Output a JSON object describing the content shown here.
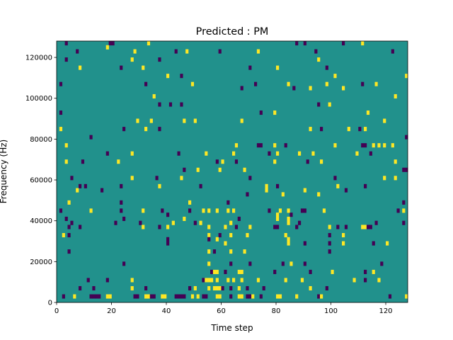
{
  "chart_data": {
    "type": "heatmap",
    "title": "Predicted : PM",
    "xlabel": "Time step",
    "ylabel": "Frequency (Hz)",
    "xlim": [
      0,
      128
    ],
    "ylim": [
      0,
      128000
    ],
    "x_ticks": [
      0,
      20,
      40,
      60,
      80,
      100,
      120
    ],
    "x_tick_labels": [
      "0",
      "20",
      "40",
      "60",
      "80",
      "100",
      "120"
    ],
    "y_ticks": [
      0,
      20000,
      40000,
      60000,
      80000,
      100000,
      120000
    ],
    "y_tick_labels": [
      "0",
      "20000",
      "40000",
      "60000",
      "80000",
      "100000",
      "120000"
    ],
    "grid": false,
    "colormap": "viridis",
    "value_levels": [
      -1,
      0,
      1
    ],
    "colors": {
      "background_level": "#21918c",
      "low_level": "#440154",
      "high_level": "#fde725"
    },
    "background_value": 0,
    "cell_size_x": 1,
    "cell_size_y": 2000,
    "cells": [
      [
        3,
        126000,
        -1
      ],
      [
        19,
        126000,
        -1
      ],
      [
        20,
        126000,
        -1
      ],
      [
        33,
        126000,
        1
      ],
      [
        87,
        126000,
        -1
      ],
      [
        90,
        126000,
        -1
      ],
      [
        104,
        126000,
        -1
      ],
      [
        111,
        126000,
        1
      ],
      [
        18,
        124000,
        1
      ],
      [
        7,
        122000,
        -1
      ],
      [
        28,
        122000,
        1
      ],
      [
        43,
        122000,
        -1
      ],
      [
        47,
        122000,
        1
      ],
      [
        59,
        122000,
        -1
      ],
      [
        73,
        122000,
        1
      ],
      [
        94,
        122000,
        -1
      ],
      [
        122,
        122000,
        -1
      ],
      [
        3,
        118000,
        -1
      ],
      [
        27,
        118000,
        1
      ],
      [
        37,
        118000,
        -1
      ],
      [
        95,
        118000,
        1
      ],
      [
        8,
        114000,
        1
      ],
      [
        23,
        114000,
        -1
      ],
      [
        31,
        114000,
        1
      ],
      [
        70,
        114000,
        -1
      ],
      [
        80,
        114000,
        1
      ],
      [
        98,
        114000,
        -1
      ],
      [
        40,
        110000,
        1
      ],
      [
        45,
        110000,
        -1
      ],
      [
        101,
        110000,
        1
      ],
      [
        127,
        110000,
        1
      ],
      [
        1,
        106000,
        -1
      ],
      [
        32,
        106000,
        -1
      ],
      [
        49,
        106000,
        1
      ],
      [
        72,
        106000,
        -1
      ],
      [
        84,
        106000,
        1
      ],
      [
        98,
        106000,
        1
      ],
      [
        111,
        106000,
        -1
      ],
      [
        116,
        106000,
        1
      ],
      [
        67,
        104000,
        -1
      ],
      [
        86,
        104000,
        -1
      ],
      [
        92,
        104000,
        1
      ],
      [
        104,
        104000,
        1
      ],
      [
        35,
        100000,
        1
      ],
      [
        123,
        100000,
        1
      ],
      [
        37,
        96000,
        -1
      ],
      [
        41,
        96000,
        -1
      ],
      [
        45,
        96000,
        -1
      ],
      [
        95,
        96000,
        -1
      ],
      [
        99,
        96000,
        1
      ],
      [
        1,
        92000,
        -1
      ],
      [
        74,
        92000,
        -1
      ],
      [
        79,
        92000,
        1
      ],
      [
        113,
        92000,
        1
      ],
      [
        29,
        88000,
        1
      ],
      [
        34,
        88000,
        1
      ],
      [
        46,
        88000,
        1
      ],
      [
        50,
        88000,
        1
      ],
      [
        67,
        88000,
        1
      ],
      [
        119,
        88000,
        1
      ],
      [
        1,
        84000,
        1
      ],
      [
        24,
        84000,
        -1
      ],
      [
        32,
        84000,
        1
      ],
      [
        37,
        84000,
        -1
      ],
      [
        92,
        84000,
        1
      ],
      [
        96,
        84000,
        -1
      ],
      [
        106,
        84000,
        1
      ],
      [
        110,
        84000,
        -1
      ],
      [
        112,
        84000,
        1
      ],
      [
        12,
        80000,
        -1
      ],
      [
        127,
        80000,
        -1
      ],
      [
        3,
        76000,
        1
      ],
      [
        65,
        76000,
        1
      ],
      [
        73,
        76000,
        -1
      ],
      [
        74,
        76000,
        -1
      ],
      [
        79,
        76000,
        1
      ],
      [
        83,
        76000,
        -1
      ],
      [
        101,
        76000,
        1
      ],
      [
        111,
        76000,
        -1
      ],
      [
        112,
        76000,
        -1
      ],
      [
        115,
        76000,
        1
      ],
      [
        117,
        76000,
        1
      ],
      [
        119,
        76000,
        1
      ],
      [
        122,
        76000,
        1
      ],
      [
        18,
        72000,
        -1
      ],
      [
        27,
        72000,
        1
      ],
      [
        44,
        72000,
        -1
      ],
      [
        54,
        72000,
        1
      ],
      [
        64,
        72000,
        1
      ],
      [
        77,
        72000,
        -1
      ],
      [
        80,
        72000,
        1
      ],
      [
        88,
        72000,
        1
      ],
      [
        93,
        72000,
        1
      ],
      [
        109,
        72000,
        1
      ],
      [
        114,
        72000,
        -1
      ],
      [
        3,
        68000,
        1
      ],
      [
        9,
        68000,
        -1
      ],
      [
        22,
        68000,
        1
      ],
      [
        58,
        68000,
        -1
      ],
      [
        60,
        68000,
        1
      ],
      [
        65,
        68000,
        -1
      ],
      [
        79,
        68000,
        1
      ],
      [
        91,
        68000,
        -1
      ],
      [
        96,
        68000,
        1
      ],
      [
        123,
        68000,
        1
      ],
      [
        46,
        64000,
        -1
      ],
      [
        51,
        64000,
        1
      ],
      [
        59,
        64000,
        1
      ],
      [
        68,
        64000,
        1
      ],
      [
        126,
        64000,
        -1
      ],
      [
        127,
        64000,
        -1
      ],
      [
        5,
        60000,
        -1
      ],
      [
        27,
        60000,
        1
      ],
      [
        36,
        60000,
        -1
      ],
      [
        45,
        60000,
        1
      ],
      [
        70,
        60000,
        -1
      ],
      [
        101,
        60000,
        -1
      ],
      [
        119,
        60000,
        1
      ],
      [
        123,
        60000,
        1
      ],
      [
        8,
        56000,
        -1
      ],
      [
        10,
        56000,
        -1
      ],
      [
        23,
        56000,
        -1
      ],
      [
        37,
        56000,
        1
      ],
      [
        52,
        56000,
        -1
      ],
      [
        76,
        56000,
        1
      ],
      [
        80,
        56000,
        -1
      ],
      [
        102,
        56000,
        1
      ],
      [
        112,
        56000,
        -1
      ],
      [
        7,
        54000,
        1
      ],
      [
        16,
        54000,
        -1
      ],
      [
        76,
        54000,
        1
      ],
      [
        90,
        54000,
        1
      ],
      [
        105,
        54000,
        -1
      ],
      [
        69,
        52000,
        -1
      ],
      [
        82,
        52000,
        1
      ],
      [
        95,
        52000,
        1
      ],
      [
        4,
        48000,
        1
      ],
      [
        23,
        48000,
        -1
      ],
      [
        48,
        48000,
        1
      ],
      [
        62,
        48000,
        -1
      ],
      [
        126,
        48000,
        -1
      ],
      [
        1,
        44000,
        -1
      ],
      [
        12,
        44000,
        1
      ],
      [
        23,
        44000,
        -1
      ],
      [
        31,
        44000,
        1
      ],
      [
        38,
        44000,
        -1
      ],
      [
        48,
        44000,
        -1
      ],
      [
        53,
        44000,
        1
      ],
      [
        55,
        44000,
        1
      ],
      [
        58,
        44000,
        1
      ],
      [
        62,
        44000,
        1
      ],
      [
        64,
        44000,
        1
      ],
      [
        77,
        44000,
        -1
      ],
      [
        81,
        44000,
        1
      ],
      [
        84,
        44000,
        1
      ],
      [
        89,
        44000,
        -1
      ],
      [
        90,
        44000,
        -1
      ],
      [
        97,
        44000,
        1
      ],
      [
        124,
        44000,
        -1
      ],
      [
        126,
        44000,
        1
      ],
      [
        40,
        42000,
        -1
      ],
      [
        80,
        42000,
        1
      ],
      [
        85,
        42000,
        -1
      ],
      [
        3,
        40000,
        -1
      ],
      [
        24,
        40000,
        -1
      ],
      [
        46,
        40000,
        1
      ],
      [
        66,
        40000,
        -1
      ],
      [
        80,
        40000,
        1
      ],
      [
        84,
        40000,
        1
      ],
      [
        5,
        38000,
        -1
      ],
      [
        21,
        38000,
        -1
      ],
      [
        30,
        38000,
        -1
      ],
      [
        42,
        38000,
        1
      ],
      [
        50,
        38000,
        -1
      ],
      [
        52,
        38000,
        1
      ],
      [
        63,
        38000,
        1
      ],
      [
        84,
        38000,
        1
      ],
      [
        88,
        38000,
        -1
      ],
      [
        116,
        38000,
        -1
      ],
      [
        126,
        38000,
        -1
      ],
      [
        4,
        36000,
        -1
      ],
      [
        8,
        36000,
        -1
      ],
      [
        31,
        36000,
        1
      ],
      [
        37,
        36000,
        -1
      ],
      [
        40,
        36000,
        1
      ],
      [
        55,
        36000,
        1
      ],
      [
        61,
        36000,
        1
      ],
      [
        65,
        36000,
        -1
      ],
      [
        70,
        36000,
        1
      ],
      [
        79,
        36000,
        -1
      ],
      [
        80,
        36000,
        -1
      ],
      [
        87,
        36000,
        -1
      ],
      [
        99,
        36000,
        1
      ],
      [
        102,
        36000,
        -1
      ],
      [
        105,
        36000,
        -1
      ],
      [
        111,
        36000,
        1
      ],
      [
        112,
        36000,
        1
      ],
      [
        113,
        36000,
        -1
      ],
      [
        114,
        36000,
        -1
      ],
      [
        2,
        32000,
        1
      ],
      [
        4,
        32000,
        -1
      ],
      [
        55,
        32000,
        1
      ],
      [
        59,
        32000,
        -1
      ],
      [
        63,
        32000,
        1
      ],
      [
        69,
        32000,
        1
      ],
      [
        83,
        32000,
        1
      ],
      [
        99,
        32000,
        -1
      ],
      [
        104,
        32000,
        1
      ],
      [
        40,
        30000,
        -1
      ],
      [
        55,
        30000,
        -1
      ],
      [
        58,
        30000,
        1
      ],
      [
        84,
        30000,
        1
      ],
      [
        40,
        28000,
        -1
      ],
      [
        61,
        28000,
        1
      ],
      [
        84,
        28000,
        1
      ],
      [
        90,
        28000,
        -1
      ],
      [
        99,
        28000,
        -1
      ],
      [
        104,
        28000,
        1
      ],
      [
        115,
        28000,
        -1
      ],
      [
        120,
        28000,
        1
      ],
      [
        4,
        24000,
        -1
      ],
      [
        55,
        24000,
        1
      ],
      [
        57,
        24000,
        -1
      ],
      [
        63,
        24000,
        1
      ],
      [
        68,
        24000,
        1
      ],
      [
        99,
        24000,
        -1
      ],
      [
        24,
        18000,
        -1
      ],
      [
        55,
        18000,
        1
      ],
      [
        63,
        18000,
        -1
      ],
      [
        70,
        18000,
        -1
      ],
      [
        82,
        18000,
        -1
      ],
      [
        85,
        18000,
        1
      ],
      [
        90,
        18000,
        -1
      ],
      [
        118,
        18000,
        -1
      ],
      [
        56,
        14000,
        -1
      ],
      [
        57,
        14000,
        1
      ],
      [
        58,
        14000,
        1
      ],
      [
        61,
        14000,
        -1
      ],
      [
        66,
        14000,
        1
      ],
      [
        67,
        14000,
        1
      ],
      [
        79,
        14000,
        -1
      ],
      [
        92,
        14000,
        -1
      ],
      [
        100,
        14000,
        1
      ],
      [
        112,
        14000,
        -1
      ],
      [
        115,
        14000,
        1
      ],
      [
        11,
        10000,
        -1
      ],
      [
        18,
        10000,
        -1
      ],
      [
        27,
        10000,
        1
      ],
      [
        53,
        10000,
        -1
      ],
      [
        54,
        10000,
        1
      ],
      [
        55,
        10000,
        1
      ],
      [
        56,
        10000,
        1
      ],
      [
        58,
        10000,
        1
      ],
      [
        62,
        10000,
        1
      ],
      [
        64,
        10000,
        1
      ],
      [
        67,
        10000,
        1
      ],
      [
        73,
        10000,
        1
      ],
      [
        83,
        10000,
        1
      ],
      [
        89,
        10000,
        1
      ],
      [
        108,
        10000,
        1
      ],
      [
        112,
        10000,
        -1
      ],
      [
        117,
        10000,
        1
      ],
      [
        8,
        6000,
        -1
      ],
      [
        13,
        6000,
        -1
      ],
      [
        27,
        6000,
        1
      ],
      [
        32,
        6000,
        -1
      ],
      [
        48,
        6000,
        -1
      ],
      [
        50,
        6000,
        1
      ],
      [
        55,
        6000,
        1
      ],
      [
        57,
        6000,
        1
      ],
      [
        58,
        6000,
        1
      ],
      [
        59,
        6000,
        1
      ],
      [
        60,
        6000,
        -1
      ],
      [
        63,
        6000,
        -1
      ],
      [
        66,
        6000,
        1
      ],
      [
        69,
        6000,
        -1
      ],
      [
        75,
        6000,
        -1
      ],
      [
        92,
        6000,
        1
      ],
      [
        98,
        6000,
        -1
      ],
      [
        2,
        2000,
        -1
      ],
      [
        6,
        2000,
        1
      ],
      [
        12,
        2000,
        -1
      ],
      [
        13,
        2000,
        -1
      ],
      [
        14,
        2000,
        -1
      ],
      [
        15,
        2000,
        -1
      ],
      [
        18,
        2000,
        1
      ],
      [
        19,
        2000,
        1
      ],
      [
        28,
        2000,
        -1
      ],
      [
        29,
        2000,
        -1
      ],
      [
        32,
        2000,
        1
      ],
      [
        33,
        2000,
        1
      ],
      [
        34,
        2000,
        -1
      ],
      [
        35,
        2000,
        -1
      ],
      [
        38,
        2000,
        1
      ],
      [
        39,
        2000,
        1
      ],
      [
        43,
        2000,
        -1
      ],
      [
        44,
        2000,
        -1
      ],
      [
        45,
        2000,
        -1
      ],
      [
        46,
        2000,
        -1
      ],
      [
        49,
        2000,
        1
      ],
      [
        51,
        2000,
        1
      ],
      [
        53,
        2000,
        -1
      ],
      [
        54,
        2000,
        -1
      ],
      [
        58,
        2000,
        1
      ],
      [
        59,
        2000,
        1
      ],
      [
        63,
        2000,
        -1
      ],
      [
        66,
        2000,
        1
      ],
      [
        67,
        2000,
        1
      ],
      [
        69,
        2000,
        -1
      ],
      [
        70,
        2000,
        -1
      ],
      [
        71,
        2000,
        1
      ],
      [
        74,
        2000,
        -1
      ],
      [
        80,
        2000,
        1
      ],
      [
        81,
        2000,
        1
      ],
      [
        87,
        2000,
        1
      ],
      [
        95,
        2000,
        -1
      ],
      [
        96,
        2000,
        1
      ],
      [
        121,
        2000,
        -1
      ],
      [
        127,
        2000,
        1
      ]
    ]
  }
}
